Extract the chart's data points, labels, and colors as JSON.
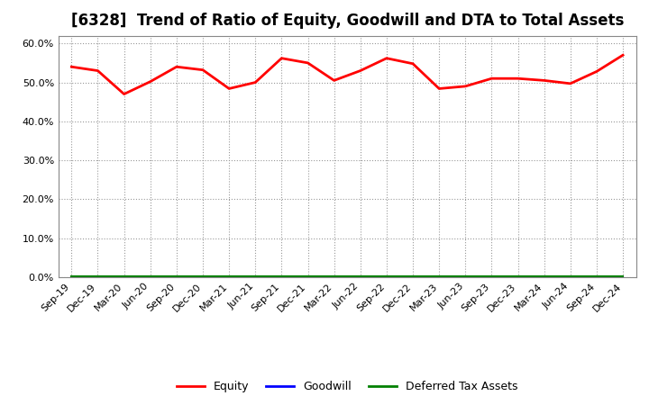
{
  "title": "[6328]  Trend of Ratio of Equity, Goodwill and DTA to Total Assets",
  "x_labels": [
    "Sep-19",
    "Dec-19",
    "Mar-20",
    "Jun-20",
    "Sep-20",
    "Dec-20",
    "Mar-21",
    "Jun-21",
    "Sep-21",
    "Dec-21",
    "Mar-22",
    "Jun-22",
    "Sep-22",
    "Dec-22",
    "Mar-23",
    "Jun-23",
    "Sep-23",
    "Dec-23",
    "Mar-24",
    "Jun-24",
    "Sep-24",
    "Dec-24"
  ],
  "equity": [
    0.54,
    0.53,
    0.47,
    0.502,
    0.54,
    0.532,
    0.484,
    0.5,
    0.562,
    0.55,
    0.505,
    0.53,
    0.562,
    0.548,
    0.484,
    0.49,
    0.51,
    0.51,
    0.505,
    0.497,
    0.528,
    0.57
  ],
  "goodwill": [
    0.001,
    0.001,
    0.001,
    0.001,
    0.001,
    0.001,
    0.001,
    0.001,
    0.001,
    0.001,
    0.001,
    0.001,
    0.001,
    0.001,
    0.001,
    0.001,
    0.001,
    0.001,
    0.001,
    0.001,
    0.001,
    0.001
  ],
  "dta": [
    0.003,
    0.003,
    0.003,
    0.003,
    0.003,
    0.003,
    0.003,
    0.003,
    0.003,
    0.003,
    0.003,
    0.003,
    0.003,
    0.003,
    0.003,
    0.003,
    0.003,
    0.003,
    0.003,
    0.003,
    0.003,
    0.003
  ],
  "equity_color": "#ff0000",
  "goodwill_color": "#0000ff",
  "dta_color": "#008000",
  "ylim": [
    0.0,
    0.62
  ],
  "yticks": [
    0.0,
    0.1,
    0.2,
    0.3,
    0.4,
    0.5,
    0.6
  ],
  "background_color": "#ffffff",
  "grid_color": "#999999",
  "title_fontsize": 12,
  "axis_fontsize": 8,
  "legend_fontsize": 9
}
